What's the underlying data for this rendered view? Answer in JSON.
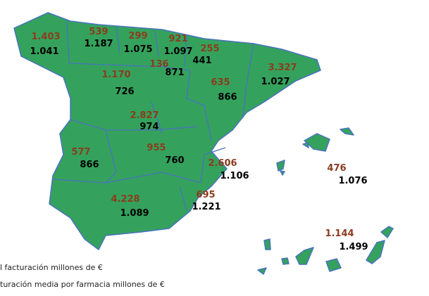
{
  "regions": [
    {
      "total": "1.403",
      "average": "1.041"
    },
    {
      "total": "539",
      "average": "1.187"
    },
    {
      "total": "299",
      "average": "1.075"
    },
    {
      "total": "921",
      "average": "1.097"
    },
    {
      "total": "255",
      "average": "441"
    },
    {
      "total": "136",
      "average": "871"
    },
    {
      "total": "635",
      "average": "866"
    },
    {
      "total": "3.327",
      "average": "1.027"
    },
    {
      "total": "1.170",
      "average": "726"
    },
    {
      "total": "2.827",
      "average": "974"
    },
    {
      "total": "577",
      "average": "866"
    },
    {
      "total": "955",
      "average": "760"
    },
    {
      "total": "2.606",
      "average": "1.106"
    },
    {
      "total": "476",
      "average": "1.076"
    },
    {
      "total": "695",
      "average": "1.221"
    },
    {
      "total": "4.228",
      "average": "1.089"
    },
    {
      "total": "1.144",
      "average": "1.499"
    }
  ],
  "legend": [
    "l facturación millones de €",
    "turación media por farmacia millones de €"
  ]
}
